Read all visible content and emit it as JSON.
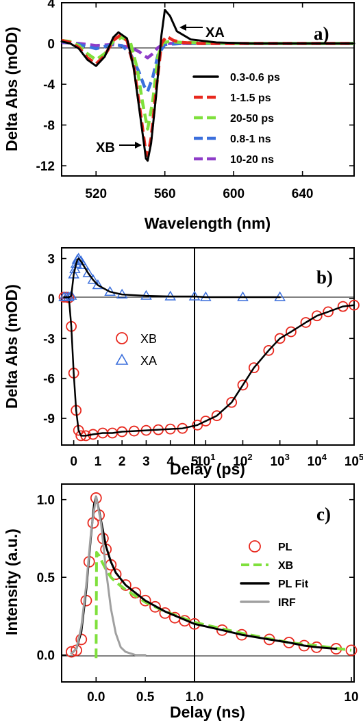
{
  "chart_data": [
    {
      "type": "line",
      "panel_label": "a)",
      "xlabel": "Wavelength (nm)",
      "ylabel": "Delta Abs (mOD)",
      "xlim": [
        500,
        670
      ],
      "ylim": [
        -13,
        4
      ],
      "xticks": [
        "520",
        "560",
        "600",
        "640"
      ],
      "yticks": [
        "4",
        "0",
        "-4",
        "-8",
        "-12"
      ],
      "grid": false,
      "legend_position": "right",
      "annotations": [
        "XA",
        "XB"
      ],
      "series": [
        {
          "name": "0.3-0.6 ps",
          "color": "#000000",
          "style": "solid",
          "x": [
            500,
            505,
            510,
            515,
            520,
            525,
            530,
            533,
            538,
            542,
            546,
            549,
            550,
            552,
            555,
            558,
            560,
            563,
            567,
            575,
            590,
            610,
            640,
            670
          ],
          "y": [
            0.2,
            0,
            -0.5,
            -1.6,
            -2.2,
            -1.3,
            0.6,
            1.1,
            0.5,
            -2.5,
            -7.5,
            -11.3,
            -11.5,
            -9.8,
            -5,
            0.8,
            3.3,
            2.7,
            1.2,
            0.4,
            0.1,
            0,
            0,
            0
          ]
        },
        {
          "name": "1-1.5 ps",
          "color": "#e8281e",
          "style": "dashed",
          "x": [
            500,
            505,
            510,
            515,
            520,
            525,
            530,
            534,
            538,
            542,
            546,
            549,
            550,
            552,
            555,
            558,
            561,
            565,
            570,
            580,
            600,
            640,
            670
          ],
          "y": [
            0.3,
            0.1,
            -0.4,
            -1.4,
            -2,
            -1.2,
            0.3,
            0.8,
            0.3,
            -2.3,
            -7,
            -10.8,
            -11,
            -9.3,
            -4.5,
            0,
            0.7,
            0.3,
            0.1,
            0,
            0,
            0,
            0
          ]
        },
        {
          "name": "20-50 ps",
          "color": "#7fe03c",
          "style": "dashed",
          "x": [
            500,
            505,
            510,
            515,
            520,
            525,
            530,
            535,
            540,
            544,
            547,
            550,
            553,
            556,
            559,
            563,
            570,
            600,
            670
          ],
          "y": [
            0.3,
            0.2,
            -0.2,
            -1,
            -1.6,
            -1,
            0.2,
            0.6,
            0.1,
            -2.5,
            -5.8,
            -8.4,
            -5.6,
            -1.2,
            0.1,
            0.2,
            0.1,
            0,
            0
          ]
        },
        {
          "name": "0.8-1 ns",
          "color": "#3b6fdc",
          "style": "dashed",
          "x": [
            500,
            510,
            520,
            530,
            535,
            540,
            545,
            548,
            550,
            553,
            556,
            560,
            570,
            600,
            670
          ],
          "y": [
            0.2,
            -0.1,
            -0.5,
            -0.1,
            -0.2,
            -1,
            -2.8,
            -4.2,
            -4.7,
            -3.3,
            -1.1,
            -0.1,
            0,
            0,
            0
          ]
        },
        {
          "name": "10-20 ns",
          "color": "#8e3cc8",
          "style": "dashed",
          "x": [
            500,
            510,
            520,
            530,
            540,
            545,
            548,
            550,
            553,
            556,
            560,
            570,
            670
          ],
          "y": [
            0.1,
            0,
            -0.2,
            -0.1,
            -0.4,
            -0.8,
            -1.2,
            -1.4,
            -1,
            -0.4,
            0,
            0,
            0
          ]
        }
      ]
    },
    {
      "type": "scatter",
      "panel_label": "b)",
      "xlabel": "Delay (ps)",
      "ylabel": "Delta Abs (mOD)",
      "x_scale": "linear from -0.5 to 5 ps, then logarithmic from 5 to 1e5 ps",
      "ylim": [
        -11,
        3.8
      ],
      "xticks": [
        "0",
        "1",
        "2",
        "3",
        "4",
        "5",
        "10^1",
        "10^2",
        "10^3",
        "10^4",
        "10^5"
      ],
      "yticks": [
        "3",
        "0",
        "-3",
        "-6",
        "-9"
      ],
      "grid": false,
      "legend_position": "center-left",
      "series": [
        {
          "name": "XB",
          "marker": "circle",
          "color": "#e8281e",
          "x": [
            -0.4,
            -0.3,
            -0.2,
            -0.1,
            0,
            0.1,
            0.2,
            0.3,
            0.5,
            0.8,
            1.2,
            1.6,
            2,
            2.5,
            3,
            3.5,
            4,
            4.5,
            6,
            10,
            20,
            50,
            100,
            200,
            500,
            1000,
            2000,
            5000,
            10000,
            20000,
            50000,
            100000
          ],
          "y": [
            0.1,
            0.1,
            0.05,
            -2.1,
            -5.6,
            -8.4,
            -9.9,
            -10.3,
            -10.3,
            -10.2,
            -10.1,
            -10.1,
            -10,
            -9.95,
            -9.9,
            -9.85,
            -9.8,
            -9.75,
            -9.5,
            -9.2,
            -8.8,
            -7.8,
            -6.5,
            -5.2,
            -3.9,
            -3,
            -2.5,
            -1.8,
            -1.3,
            -1,
            -0.6,
            -0.5
          ]
        },
        {
          "name": "XA",
          "marker": "triangle",
          "color": "#3b6fdc",
          "x": [
            -0.4,
            -0.3,
            -0.2,
            -0.1,
            0,
            0.05,
            0.1,
            0.15,
            0.2,
            0.3,
            0.4,
            0.6,
            0.8,
            1,
            1.5,
            2,
            3,
            4,
            5,
            10,
            100,
            1000
          ],
          "y": [
            0.1,
            0.1,
            0.1,
            0.2,
            1.8,
            2.2,
            2.6,
            2.9,
            3,
            2.8,
            2.5,
            1.9,
            1.4,
            1,
            0.5,
            0.3,
            0.2,
            0.15,
            0.15,
            0.1,
            0.1,
            0.1
          ]
        }
      ]
    },
    {
      "type": "scatter",
      "panel_label": "c)",
      "xlabel": "Delay (ns)",
      "ylabel": "Intensity (a.u.)",
      "x_scale": "linear from -0.3 to 1.0 ns, then logarithmic from 1 to 10 ns",
      "ylim": [
        -0.05,
        1.1
      ],
      "xticks": [
        "0.0",
        "0.5",
        "1.0",
        "10"
      ],
      "yticks": [
        "0.0",
        "0.5",
        "1.0"
      ],
      "grid": false,
      "legend_position": "right",
      "series": [
        {
          "name": "PL",
          "marker": "circle",
          "color": "#e8281e",
          "x": [
            -0.25,
            -0.2,
            -0.15,
            -0.1,
            -0.07,
            -0.03,
            0,
            0.03,
            0.07,
            0.1,
            0.15,
            0.2,
            0.3,
            0.4,
            0.5,
            0.6,
            0.7,
            0.8,
            0.9,
            1,
            1.5,
            2,
            3,
            4,
            5,
            6,
            8,
            10
          ],
          "y": [
            0.02,
            0.03,
            0.1,
            0.35,
            0.6,
            0.85,
            1.01,
            0.9,
            0.75,
            0.68,
            0.58,
            0.52,
            0.45,
            0.4,
            0.35,
            0.31,
            0.27,
            0.24,
            0.22,
            0.2,
            0.16,
            0.13,
            0.1,
            0.08,
            0.06,
            0.05,
            0.04,
            0.03
          ]
        },
        {
          "name": "XB",
          "marker": "dashed-line",
          "color": "#7fe03c",
          "x": [
            0,
            0.005,
            0.03,
            0.06,
            0.1,
            0.15,
            0.2,
            0.3,
            0.5,
            0.7,
            1,
            2,
            4,
            6,
            10
          ],
          "y": [
            -0.02,
            0.66,
            0.64,
            0.6,
            0.55,
            0.5,
            0.47,
            0.42,
            0.34,
            0.28,
            0.21,
            0.14,
            0.08,
            0.06,
            0.03
          ]
        },
        {
          "name": "PL Fit",
          "marker": "line",
          "color": "#000000",
          "x": [
            -0.25,
            -0.2,
            -0.15,
            -0.1,
            -0.05,
            -0.02,
            0,
            0.03,
            0.07,
            0.1,
            0.15,
            0.2,
            0.3,
            0.4,
            0.5,
            0.7,
            1,
            1.5,
            2,
            3,
            4,
            5,
            6,
            8
          ],
          "y": [
            0.01,
            0.04,
            0.15,
            0.42,
            0.78,
            0.97,
            1.02,
            0.93,
            0.8,
            0.7,
            0.6,
            0.53,
            0.45,
            0.4,
            0.35,
            0.28,
            0.2,
            0.16,
            0.13,
            0.1,
            0.08,
            0.06,
            0.05,
            0.04
          ]
        },
        {
          "name": "IRF",
          "marker": "line",
          "color": "#a0a0a0",
          "x": [
            -0.25,
            -0.2,
            -0.15,
            -0.1,
            -0.05,
            0,
            0.05,
            0.1,
            0.15,
            0.2,
            0.25,
            0.3,
            0.35,
            0.4,
            0.5
          ],
          "y": [
            0.01,
            0.04,
            0.18,
            0.45,
            0.8,
            1.02,
            0.85,
            0.55,
            0.3,
            0.14,
            0.05,
            0.02,
            0.01,
            0,
            0
          ]
        }
      ]
    }
  ]
}
